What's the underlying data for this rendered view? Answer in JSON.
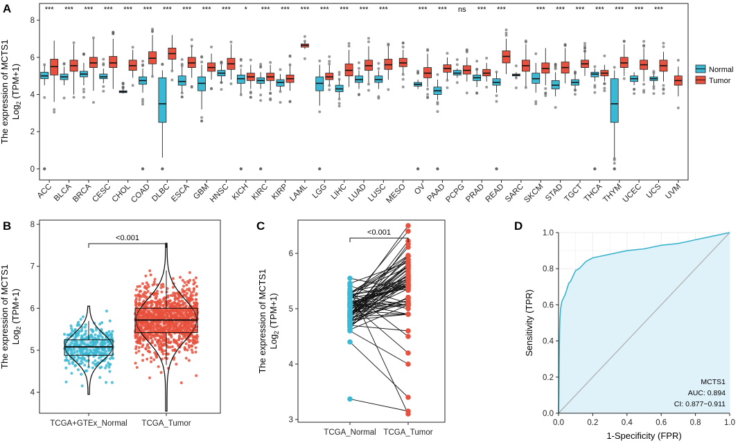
{
  "colors": {
    "normal": "#3bb8d4",
    "tumor": "#e8513d",
    "roc_line": "#39b3cc",
    "roc_fill": "#dff2fa",
    "diag": "#b0b0b0",
    "grid": "#ebebeb"
  },
  "chart_data": [
    {
      "panel": "A",
      "type": "box",
      "ylabel_line1": "The expression of MCTS1",
      "ylabel_line2_pre": "Log",
      "ylabel_line2_sub": "2",
      "ylabel_line2_post": " (TPM+1)",
      "ylim": [
        -0.6,
        8.9
      ],
      "yticks": [
        0,
        2,
        4,
        6,
        8
      ],
      "legend": [
        {
          "name": "Normal",
          "key": "normal"
        },
        {
          "name": "Tumor",
          "key": "tumor"
        }
      ],
      "groups": [
        {
          "name": "ACC",
          "sig": "***",
          "normal": [
            4.5,
            4.85,
            5.0,
            5.2,
            5.6
          ],
          "tumor": [
            3.6,
            5.05,
            5.5,
            5.9,
            6.9
          ]
        },
        {
          "name": "BLCA",
          "sig": "***",
          "normal": [
            4.5,
            4.8,
            4.95,
            5.1,
            5.5
          ],
          "tumor": [
            4.0,
            5.25,
            5.55,
            5.85,
            6.7
          ]
        },
        {
          "name": "BRCA",
          "sig": "***",
          "normal": [
            4.5,
            4.95,
            5.1,
            5.25,
            5.7
          ],
          "tumor": [
            4.2,
            5.45,
            5.7,
            6.0,
            7.0
          ]
        },
        {
          "name": "CESC",
          "sig": "***",
          "normal": [
            4.6,
            4.85,
            4.95,
            5.1,
            5.4
          ],
          "tumor": [
            4.3,
            5.45,
            5.7,
            6.05,
            7.0
          ]
        },
        {
          "name": "CHOL",
          "sig": "***",
          "normal": [
            4.05,
            4.1,
            4.15,
            4.2,
            4.3
          ],
          "tumor": [
            4.9,
            5.3,
            5.55,
            5.85,
            6.4
          ]
        },
        {
          "name": "COAD",
          "sig": "***",
          "normal": [
            4.1,
            4.55,
            4.75,
            4.95,
            5.4
          ],
          "tumor": [
            5.0,
            5.65,
            5.95,
            6.3,
            7.2
          ]
        },
        {
          "name": "DLBC",
          "sig": "***",
          "normal": [
            0.6,
            2.5,
            3.5,
            4.9,
            5.3
          ],
          "tumor": [
            5.3,
            5.9,
            6.2,
            6.5,
            7.2
          ]
        },
        {
          "name": "ESCA",
          "sig": "***",
          "normal": [
            4.1,
            4.5,
            4.7,
            5.0,
            5.5
          ],
          "tumor": [
            4.9,
            5.45,
            5.7,
            6.0,
            6.6
          ]
        },
        {
          "name": "GBM",
          "sig": "***",
          "normal": [
            3.2,
            4.2,
            4.6,
            4.95,
            5.6
          ],
          "tumor": [
            4.8,
            5.25,
            5.45,
            5.7,
            6.2
          ]
        },
        {
          "name": "HNSC",
          "sig": "***",
          "normal": [
            4.7,
            5.0,
            5.15,
            5.3,
            5.6
          ],
          "tumor": [
            4.8,
            5.35,
            5.65,
            5.95,
            6.7
          ]
        },
        {
          "name": "KICH",
          "sig": "*",
          "normal": [
            4.0,
            4.6,
            4.85,
            5.05,
            5.4
          ],
          "tumor": [
            4.3,
            4.75,
            4.95,
            5.15,
            5.6
          ]
        },
        {
          "name": "KIRC",
          "sig": "***",
          "normal": [
            4.3,
            4.6,
            4.75,
            4.9,
            5.2
          ],
          "tumor": [
            4.2,
            4.75,
            4.95,
            5.15,
            5.6
          ]
        },
        {
          "name": "KIRP",
          "sig": "***",
          "normal": [
            4.2,
            4.45,
            4.65,
            4.8,
            5.1
          ],
          "tumor": [
            4.2,
            4.65,
            4.85,
            5.05,
            5.6
          ]
        },
        {
          "name": "LAML",
          "sig": "***",
          "normal": null,
          "tumor": [
            6.45,
            6.55,
            6.65,
            6.72,
            6.85
          ]
        },
        {
          "name": "LGG",
          "sig": "***",
          "normal": [
            3.4,
            4.2,
            4.6,
            4.95,
            5.6
          ],
          "tumor": [
            4.5,
            4.8,
            4.95,
            5.15,
            5.6
          ]
        },
        {
          "name": "LIHC",
          "sig": "***",
          "normal": [
            3.8,
            4.15,
            4.3,
            4.5,
            4.8
          ],
          "tumor": [
            4.4,
            5.0,
            5.3,
            5.65,
            6.4
          ]
        },
        {
          "name": "LUAD",
          "sig": "***",
          "normal": [
            4.3,
            4.65,
            4.8,
            5.0,
            5.3
          ],
          "tumor": [
            4.6,
            5.3,
            5.55,
            5.85,
            6.6
          ]
        },
        {
          "name": "LUSC",
          "sig": "***",
          "normal": [
            4.3,
            4.65,
            4.8,
            5.0,
            5.3
          ],
          "tumor": [
            4.8,
            5.35,
            5.6,
            5.9,
            6.6
          ]
        },
        {
          "name": "MESO",
          "sig": "",
          "normal": null,
          "tumor": [
            5.1,
            5.5,
            5.7,
            5.95,
            6.4
          ]
        },
        {
          "name": "OV",
          "sig": "***",
          "normal": [
            4.3,
            4.45,
            4.55,
            4.65,
            4.8
          ],
          "tumor": [
            4.4,
            4.9,
            5.15,
            5.45,
            6.2
          ]
        },
        {
          "name": "PAAD",
          "sig": "***",
          "normal": [
            3.7,
            4.0,
            4.2,
            4.4,
            4.8
          ],
          "tumor": [
            4.8,
            5.2,
            5.4,
            5.6,
            6.0
          ]
        },
        {
          "name": "PCPG",
          "sig": "ns",
          "normal": [
            4.9,
            5.05,
            5.15,
            5.3,
            5.4
          ],
          "tumor": [
            4.7,
            5.1,
            5.3,
            5.55,
            6.0
          ]
        },
        {
          "name": "PRAD",
          "sig": "***",
          "normal": [
            4.4,
            4.75,
            4.9,
            5.05,
            5.3
          ],
          "tumor": [
            4.7,
            5.0,
            5.15,
            5.35,
            5.7
          ]
        },
        {
          "name": "READ",
          "sig": "***",
          "normal": [
            4.1,
            4.5,
            4.65,
            4.85,
            5.2
          ],
          "tumor": [
            5.1,
            5.7,
            6.05,
            6.35,
            7.0
          ]
        },
        {
          "name": "SARC",
          "sig": "",
          "normal": [
            4.9,
            5.0,
            5.05,
            5.1,
            5.2
          ],
          "tumor": [
            4.4,
            5.25,
            5.55,
            5.85,
            6.7
          ]
        },
        {
          "name": "SKCM",
          "sig": "***",
          "normal": [
            4.1,
            4.6,
            4.85,
            5.15,
            5.7
          ],
          "tumor": [
            4.5,
            5.15,
            5.4,
            5.7,
            6.5
          ]
        },
        {
          "name": "STAD",
          "sig": "***",
          "normal": [
            3.9,
            4.3,
            4.5,
            4.75,
            5.2
          ],
          "tumor": [
            4.6,
            5.15,
            5.45,
            5.75,
            6.5
          ]
        },
        {
          "name": "TGCT",
          "sig": "***",
          "normal": [
            4.3,
            4.5,
            4.65,
            4.8,
            5.1
          ],
          "tumor": [
            5.0,
            5.45,
            5.65,
            5.85,
            6.3
          ]
        },
        {
          "name": "THCA",
          "sig": "***",
          "normal": [
            4.7,
            4.95,
            5.1,
            5.2,
            5.4
          ],
          "tumor": [
            4.7,
            5.0,
            5.15,
            5.3,
            5.6
          ]
        },
        {
          "name": "THYM",
          "sig": "***",
          "normal": [
            0.6,
            2.5,
            3.5,
            4.85,
            5.3
          ],
          "tumor": [
            5.0,
            5.45,
            5.7,
            6.0,
            6.7
          ]
        },
        {
          "name": "UCEC",
          "sig": "***",
          "normal": [
            4.5,
            4.7,
            4.85,
            5.0,
            5.2
          ],
          "tumor": [
            4.7,
            5.35,
            5.6,
            5.85,
            6.5
          ]
        },
        {
          "name": "UCS",
          "sig": "***",
          "normal": [
            4.5,
            4.75,
            4.85,
            4.95,
            5.1
          ],
          "tumor": [
            4.7,
            5.25,
            5.55,
            5.85,
            6.3
          ]
        },
        {
          "name": "UVM",
          "sig": "",
          "normal": null,
          "tumor": [
            3.9,
            4.5,
            4.75,
            5.0,
            5.5
          ]
        }
      ]
    },
    {
      "panel": "B",
      "type": "violin-box",
      "ylabel_line1": "The expression of MCTS1",
      "ylabel_line2_pre": "Log",
      "ylabel_line2_sub": "2",
      "ylabel_line2_post": " (TPM+1)",
      "ylim": [
        3.5,
        8.1
      ],
      "yticks": [
        4,
        5,
        6,
        7,
        8
      ],
      "pvalue": "<0.001",
      "groups": [
        {
          "name": "TCGA+GTEx_Normal",
          "key": "normal",
          "box": [
            4.6,
            4.88,
            5.08,
            5.25,
            5.7
          ],
          "min": 3.95,
          "max": 6.05,
          "n": 330
        },
        {
          "name": "TCGA_Tumor",
          "key": "tumor",
          "box": [
            4.65,
            5.42,
            5.72,
            6.0,
            6.9
          ],
          "min": 3.55,
          "max": 7.55,
          "n": 1100
        }
      ]
    },
    {
      "panel": "C",
      "type": "paired",
      "ylabel_line1": "The expression of MCTS1",
      "ylabel_line2_pre": "Log",
      "ylabel_line2_sub": "2",
      "ylabel_line2_post": " (TPM+1)",
      "ylim": [
        2.95,
        6.6
      ],
      "yticks": [
        3,
        4,
        5,
        6
      ],
      "pvalue": "<0.001",
      "categories": [
        "TCGA_Normal",
        "TCGA_Tumor"
      ],
      "n_pairs": 62
    },
    {
      "panel": "D",
      "type": "roc",
      "xlabel": "1-Specificity (FPR)",
      "ylabel": "Sensitivity (TPR)",
      "xlim": [
        0,
        1
      ],
      "ylim": [
        0,
        1
      ],
      "ticks": [
        "0.0",
        "0.2",
        "0.4",
        "0.6",
        "0.8",
        "1.0"
      ],
      "gene": "MCTS1",
      "auc_text": "AUC: 0.894",
      "ci_text": "CI: 0.877−0.911",
      "points": [
        [
          0,
          0
        ],
        [
          0.002,
          0.1
        ],
        [
          0.004,
          0.3
        ],
        [
          0.006,
          0.45
        ],
        [
          0.008,
          0.52
        ],
        [
          0.012,
          0.58
        ],
        [
          0.02,
          0.62
        ],
        [
          0.03,
          0.64
        ],
        [
          0.04,
          0.66
        ],
        [
          0.05,
          0.69
        ],
        [
          0.06,
          0.72
        ],
        [
          0.07,
          0.73
        ],
        [
          0.08,
          0.75
        ],
        [
          0.09,
          0.77
        ],
        [
          0.1,
          0.79
        ],
        [
          0.12,
          0.8
        ],
        [
          0.14,
          0.82
        ],
        [
          0.16,
          0.84
        ],
        [
          0.18,
          0.85
        ],
        [
          0.2,
          0.86
        ],
        [
          0.25,
          0.87
        ],
        [
          0.3,
          0.88
        ],
        [
          0.35,
          0.89
        ],
        [
          0.4,
          0.9
        ],
        [
          0.5,
          0.91
        ],
        [
          0.6,
          0.93
        ],
        [
          0.7,
          0.94
        ],
        [
          0.75,
          0.95
        ],
        [
          0.8,
          0.96
        ],
        [
          0.9,
          0.98
        ],
        [
          1.0,
          1.0
        ]
      ]
    }
  ]
}
